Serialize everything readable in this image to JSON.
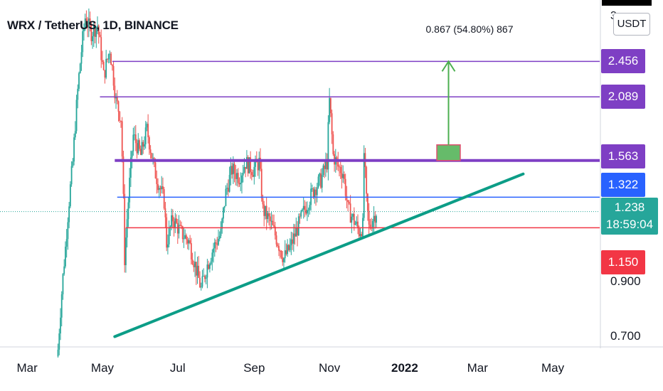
{
  "header": {
    "title": "WRX / TetherUS, 1D, BINANCE",
    "measure_label": "0.867 (54.80%) 867",
    "unit": "USDT",
    "top_axis_partial": "3"
  },
  "price_tags": [
    {
      "value": 2.456,
      "label": "2.456",
      "color": "#7e3fc4"
    },
    {
      "value": 2.089,
      "label": "2.089",
      "color": "#7e3fc4"
    },
    {
      "value": 1.563,
      "label": "1.563",
      "color": "#7e3fc4"
    },
    {
      "value": 1.322,
      "label": "1.322",
      "color": "#2962ff"
    },
    {
      "value": 1.238,
      "label": "1.238",
      "sublabel": "18:59:04",
      "color": "#26a69a"
    },
    {
      "value": 1.15,
      "label": "1.150",
      "color": "#f23645"
    }
  ],
  "y_axis_labels": [
    "0.900",
    "0.700"
  ],
  "x_axis_labels": [
    {
      "label": "Mar",
      "date": "2021-03-01"
    },
    {
      "label": "May",
      "date": "2021-05-01"
    },
    {
      "label": "Jul",
      "date": "2021-07-01"
    },
    {
      "label": "Sep",
      "date": "2021-09-01"
    },
    {
      "label": "Nov",
      "date": "2021-11-01"
    },
    {
      "label": "2022",
      "date": "2022-01-01",
      "year": true
    },
    {
      "label": "Mar",
      "date": "2022-03-01"
    },
    {
      "label": "May",
      "date": "2022-05-01"
    }
  ],
  "chart_data": {
    "type": "candlestick",
    "y_scale": "log",
    "ylim": [
      0.67,
      3.25
    ],
    "xlim": [
      "2021-02-07",
      "2022-06-08"
    ],
    "grid": false,
    "series": [
      {
        "name": "WRX / TetherUS",
        "points": [
          [
            "2021-03-26",
            0.66
          ],
          [
            "2021-04-01",
            1.05
          ],
          [
            "2021-04-07",
            1.55
          ],
          [
            "2021-04-12",
            2.3
          ],
          [
            "2021-04-17",
            3.0
          ],
          [
            "2021-04-22",
            2.8
          ],
          [
            "2021-04-27",
            2.9
          ],
          [
            "2021-05-02",
            2.3
          ],
          [
            "2021-05-07",
            2.6
          ],
          [
            "2021-05-12",
            2.05
          ],
          [
            "2021-05-16",
            1.9
          ],
          [
            "2021-05-19",
            1.0
          ],
          [
            "2021-05-22",
            1.3
          ],
          [
            "2021-05-26",
            1.75
          ],
          [
            "2021-06-01",
            1.6
          ],
          [
            "2021-06-06",
            1.8
          ],
          [
            "2021-06-12",
            1.5
          ],
          [
            "2021-06-15",
            1.42
          ],
          [
            "2021-06-20",
            1.3
          ],
          [
            "2021-06-22",
            1.07
          ],
          [
            "2021-06-27",
            1.2
          ],
          [
            "2021-07-03",
            1.13
          ],
          [
            "2021-07-10",
            1.08
          ],
          [
            "2021-07-16",
            0.95
          ],
          [
            "2021-07-20",
            0.87
          ],
          [
            "2021-07-25",
            0.97
          ],
          [
            "2021-07-30",
            1.05
          ],
          [
            "2021-08-05",
            1.12
          ],
          [
            "2021-08-09",
            1.35
          ],
          [
            "2021-08-14",
            1.5
          ],
          [
            "2021-08-20",
            1.45
          ],
          [
            "2021-08-25",
            1.55
          ],
          [
            "2021-08-31",
            1.5
          ],
          [
            "2021-09-05",
            1.55
          ],
          [
            "2021-09-08",
            1.25
          ],
          [
            "2021-09-14",
            1.18
          ],
          [
            "2021-09-20",
            1.08
          ],
          [
            "2021-09-25",
            1.0
          ],
          [
            "2021-09-30",
            1.05
          ],
          [
            "2021-10-05",
            1.13
          ],
          [
            "2021-10-10",
            1.22
          ],
          [
            "2021-10-15",
            1.3
          ],
          [
            "2021-10-20",
            1.38
          ],
          [
            "2021-10-25",
            1.43
          ],
          [
            "2021-10-30",
            1.55
          ],
          [
            "2021-11-01",
            2.05
          ],
          [
            "2021-11-04",
            1.6
          ],
          [
            "2021-11-08",
            1.52
          ],
          [
            "2021-11-12",
            1.48
          ],
          [
            "2021-11-16",
            1.25
          ],
          [
            "2021-11-20",
            1.2
          ],
          [
            "2021-11-25",
            1.13
          ],
          [
            "2021-11-28",
            1.16
          ],
          [
            "2021-11-29",
            1.62
          ],
          [
            "2021-12-01",
            1.3
          ],
          [
            "2021-12-03",
            1.15
          ],
          [
            "2021-12-06",
            1.2
          ],
          [
            "2021-12-09",
            1.238
          ]
        ]
      }
    ],
    "horizontal_levels": [
      {
        "value": 2.456,
        "color": "#7e3fc4"
      },
      {
        "value": 2.089,
        "color": "#7e3fc4"
      },
      {
        "value": 1.563,
        "color": "#7e3fc4"
      },
      {
        "value": 1.322,
        "color": "#2962ff"
      },
      {
        "value": 1.238,
        "color": "#26a69a",
        "style": "dotted"
      },
      {
        "value": 1.15,
        "color": "#f23645"
      }
    ],
    "trendline": {
      "from": [
        "2021-05-11",
        0.7
      ],
      "to": [
        "2022-04-07",
        1.47
      ],
      "color": "#0c9d87"
    },
    "target_projection": {
      "from_value": 1.563,
      "to_value": 2.456,
      "date_start": "2022-01-27",
      "date_end": "2022-02-15",
      "color": "#4caf50"
    }
  }
}
